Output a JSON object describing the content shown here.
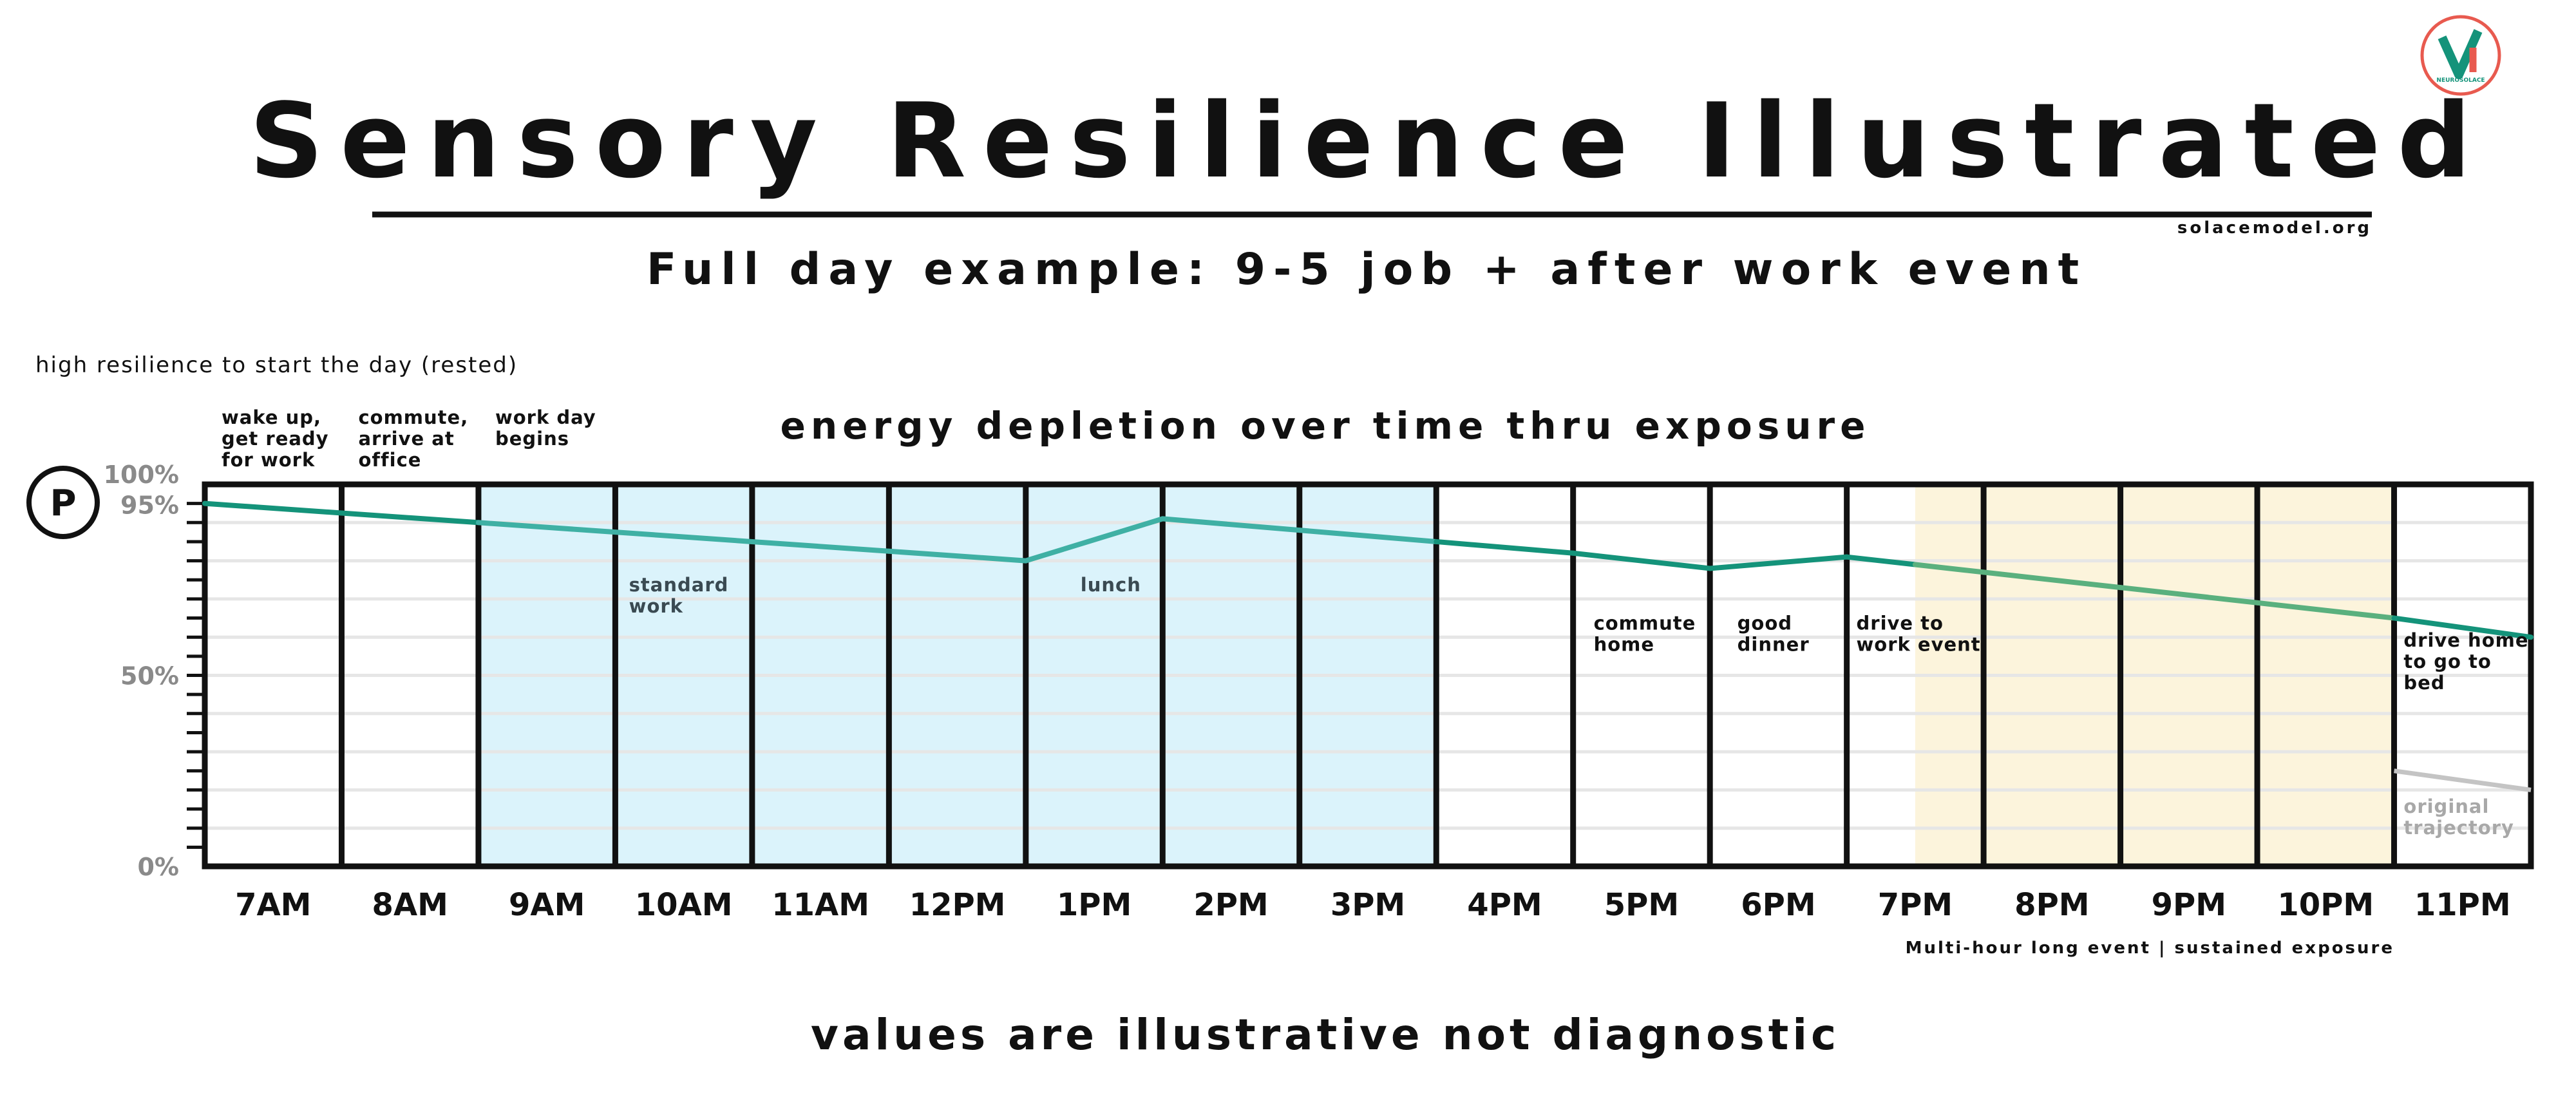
{
  "title": "Sensory Resilience Illustrated",
  "website": "solacemodel.org",
  "subtitle": "Full day example:  9-5 job + after work event",
  "start_note": "high resilience to start the day (rested)",
  "chart_heading": "energy depletion over time thru exposure",
  "footer": "values are illustrative not diagnostic",
  "event_note": "Multi-hour long event | sustained exposure",
  "logo": {
    "icon": "neurosolace-logo",
    "text": "NEUROSOLACE"
  },
  "marker_label": "P",
  "colors": {
    "line": "#14937a",
    "line_work": "#3fb0a4",
    "line_event": "#5ab07e",
    "work_fill": "#dbf3fb",
    "event_fill": "#fcf4dc",
    "original": "#c4c4c4",
    "zero_label": "#e0312d",
    "start_label": "#14937a"
  },
  "chart_data": {
    "type": "line",
    "title": "energy depletion over time thru exposure",
    "categories": [
      "7AM",
      "8AM",
      "9AM",
      "10AM",
      "11AM",
      "12PM",
      "1PM",
      "2PM",
      "3PM",
      "4PM",
      "5PM",
      "6PM",
      "7PM",
      "8PM",
      "9PM",
      "10PM",
      "11PM"
    ],
    "y_ticks": [
      {
        "value": 100,
        "label": "100%"
      },
      {
        "value": 95,
        "label": "95%"
      },
      {
        "value": 50,
        "label": "50%"
      },
      {
        "value": 0,
        "label": "0%"
      }
    ],
    "ylim": [
      0,
      100
    ],
    "xlim": [
      7,
      24
    ],
    "series": [
      {
        "x": [
          7,
          8,
          9,
          10,
          11,
          12,
          13,
          14,
          15,
          16,
          17,
          18,
          19,
          20,
          21,
          22,
          23,
          24
        ],
        "y": [
          95,
          92.5,
          90,
          87.5,
          85,
          82.5,
          80,
          91,
          88,
          85,
          82,
          78,
          81,
          77,
          73,
          69,
          65,
          60
        ]
      },
      {
        "name": "original trajectory",
        "x": [
          23,
          24
        ],
        "y": [
          25,
          20
        ]
      }
    ],
    "work_hours": [
      9,
      16
    ],
    "event_hours": [
      19.5,
      23
    ],
    "hour_annotations": [
      {
        "hour": 7,
        "lines": [
          "wake up,",
          "get ready",
          "for work"
        ]
      },
      {
        "hour": 8,
        "lines": [
          "commute,",
          "arrive at",
          "office"
        ]
      },
      {
        "hour": 9,
        "lines": [
          "work day",
          "begins"
        ]
      }
    ],
    "in_chart_annotations": [
      {
        "x": 10.1,
        "y": 72,
        "lines": [
          "standard",
          "work"
        ],
        "tone": "grey"
      },
      {
        "x": 13.4,
        "y": 72,
        "lines": [
          "lunch"
        ],
        "tone": "grey"
      },
      {
        "x": 17.15,
        "y": 62,
        "lines": [
          "commute",
          "home"
        ],
        "tone": "dark"
      },
      {
        "x": 18.2,
        "y": 62,
        "lines": [
          "good",
          "dinner"
        ],
        "tone": "dark"
      },
      {
        "x": 19.07,
        "y": 62,
        "lines": [
          "drive to",
          "work event"
        ],
        "tone": "dark"
      },
      {
        "x": 23.07,
        "y": 57.5,
        "lines": [
          "drive home",
          "to go to",
          "bed"
        ],
        "tone": "dark"
      },
      {
        "x": 23.07,
        "y": 14,
        "lines": [
          "original",
          "trajectory"
        ],
        "tone": "light"
      }
    ]
  }
}
